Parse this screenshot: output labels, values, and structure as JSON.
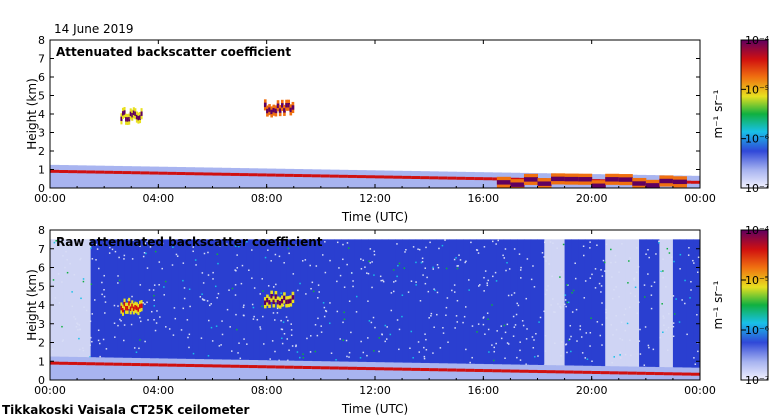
{
  "date_label": "14 June 2019",
  "footer_label": "Tikkakoski Vaisala CT25K ceilometer",
  "colors": {
    "background": "#ffffff",
    "axis": "#000000",
    "blue_field": "#2a3fd0",
    "sparse_field": "#e6e8f8"
  },
  "chart_data": [
    {
      "type": "heatmap",
      "title": "Attenuated backscatter coefficient",
      "xlabel": "Time (UTC)",
      "ylabel": "Height (km)",
      "xlim": [
        0,
        24
      ],
      "ylim": [
        0,
        8
      ],
      "x_ticks": [
        "00:00",
        "04:00",
        "08:00",
        "12:00",
        "16:00",
        "20:00",
        "00:00"
      ],
      "y_ticks": [
        "0",
        "1",
        "2",
        "3",
        "4",
        "5",
        "6",
        "7",
        "8"
      ],
      "colorbar": {
        "unit_label": "m⁻¹ sr⁻¹",
        "tick_labels": [
          "10⁻⁷",
          "10⁻⁶",
          "10⁻⁵",
          "10⁻⁴"
        ],
        "range_log10": [
          -7,
          -4
        ]
      },
      "features": [
        {
          "name": "boundary layer",
          "t_start": 0,
          "t_end": 24,
          "height_km_start": 0.9,
          "height_km_end": 0.3,
          "strength_log10": -5.2
        },
        {
          "name": "cloud layer",
          "t_start": 2.6,
          "t_end": 3.4,
          "height_km": 3.9,
          "strength_log10": -4.3
        },
        {
          "name": "cloud layer",
          "t_start": 7.9,
          "t_end": 9.0,
          "height_km": 4.3,
          "strength_log10": -4.2
        },
        {
          "name": "low cloud / fog",
          "t_start": 16.5,
          "t_end": 23.5,
          "height_km": 0.3,
          "strength_log10": -4.1
        }
      ]
    },
    {
      "type": "heatmap",
      "title": "Raw attenuated backscatter coefficient",
      "xlabel": "Time (UTC)",
      "ylabel": "Height (km)",
      "xlim": [
        0,
        24
      ],
      "ylim": [
        0,
        8
      ],
      "x_ticks": [
        "00:00",
        "04:00",
        "08:00",
        "12:00",
        "16:00",
        "20:00",
        "00:00"
      ],
      "y_ticks": [
        "0",
        "1",
        "2",
        "3",
        "4",
        "5",
        "6",
        "7",
        "8"
      ],
      "colorbar": {
        "unit_label": "m⁻¹ sr⁻¹",
        "tick_labels": [
          "10⁻⁷",
          "10⁻⁶",
          "10⁻⁵",
          "10⁻⁴"
        ],
        "range_log10": [
          -7,
          -4
        ]
      },
      "features": [
        {
          "name": "noise field",
          "t_start": 0,
          "t_end": 24,
          "height_km_start": 0,
          "height_km_end": 7.5,
          "strength_log10": -6.6
        },
        {
          "name": "boundary layer",
          "t_start": 0,
          "t_end": 24,
          "height_km_start": 0.9,
          "height_km_end": 0.3,
          "strength_log10": -5.2
        },
        {
          "name": "cloud layer",
          "t_start": 2.6,
          "t_end": 3.4,
          "height_km": 3.9,
          "strength_log10": -4.4
        },
        {
          "name": "cloud layer",
          "t_start": 7.9,
          "t_end": 9.0,
          "height_km": 4.3,
          "strength_log10": -4.3
        }
      ]
    }
  ]
}
